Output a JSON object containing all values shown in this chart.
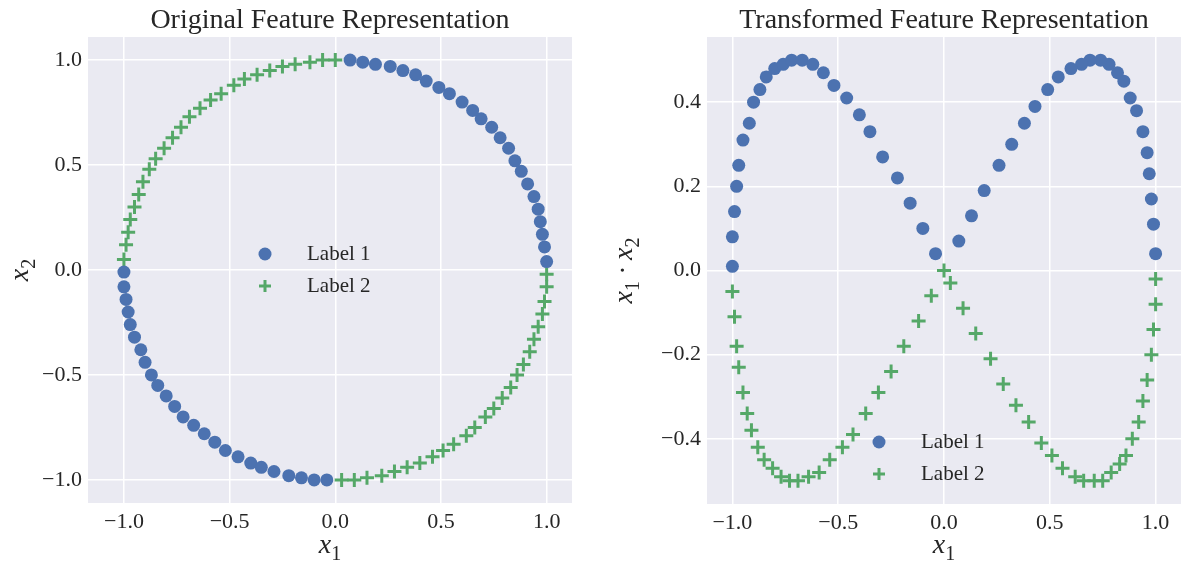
{
  "chart_data": [
    {
      "type": "scatter",
      "title": "Original Feature Representation",
      "xlabel": "x$_{1}$",
      "ylabel": "x$_{2}$",
      "xlim": [
        -1.17,
        1.12
      ],
      "ylim": [
        -1.11,
        1.11
      ],
      "xticks": [
        {
          "value": -1,
          "label": "−1.0"
        },
        {
          "value": -0.5,
          "label": "−0.5"
        },
        {
          "value": 0,
          "label": "0.0"
        },
        {
          "value": 0.5,
          "label": "0.5"
        },
        {
          "value": 1,
          "label": "1.0"
        }
      ],
      "yticks": [
        {
          "value": -1,
          "label": "−1.0"
        },
        {
          "value": -0.5,
          "label": "−0.5"
        },
        {
          "value": 0,
          "label": "0.0"
        },
        {
          "value": 0.5,
          "label": "0.5"
        },
        {
          "value": 1,
          "label": "1.0"
        }
      ],
      "grid": true,
      "legend": "center",
      "series": [
        {
          "name": "Label 1",
          "color": "#4c72b0",
          "marker": "circle",
          "x": [
            1.0,
            0.99,
            0.98,
            0.97,
            0.96,
            0.94,
            0.91,
            0.88,
            0.85,
            0.82,
            0.78,
            0.74,
            0.69,
            0.65,
            0.6,
            0.54,
            0.49,
            0.43,
            0.38,
            0.32,
            0.26,
            0.19,
            0.13,
            0.07,
            -1.0,
            -1.0,
            -0.99,
            -0.98,
            -0.97,
            -0.95,
            -0.92,
            -0.9,
            -0.87,
            -0.84,
            -0.8,
            -0.76,
            -0.72,
            -0.67,
            -0.62,
            -0.57,
            -0.52,
            -0.46,
            -0.4,
            -0.35,
            -0.29,
            -0.22,
            -0.16,
            -0.1,
            -0.04
          ],
          "values": [
            0.04,
            0.11,
            0.17,
            0.23,
            0.29,
            0.35,
            0.41,
            0.47,
            0.52,
            0.58,
            0.63,
            0.68,
            0.72,
            0.76,
            0.8,
            0.84,
            0.87,
            0.9,
            0.93,
            0.95,
            0.97,
            0.98,
            0.99,
            1.0,
            -0.01,
            -0.08,
            -0.14,
            -0.2,
            -0.26,
            -0.32,
            -0.38,
            -0.44,
            -0.5,
            -0.55,
            -0.6,
            -0.65,
            -0.7,
            -0.74,
            -0.78,
            -0.82,
            -0.86,
            -0.89,
            -0.92,
            -0.94,
            -0.96,
            -0.98,
            -0.99,
            -1.0,
            -1.0
          ]
        },
        {
          "name": "Label 2",
          "color": "#55a868",
          "marker": "cross",
          "x": [
            0.0,
            -0.06,
            -0.12,
            -0.19,
            -0.25,
            -0.31,
            -0.37,
            -0.43,
            -0.48,
            -0.54,
            -0.59,
            -0.64,
            -0.69,
            -0.73,
            -0.77,
            -0.81,
            -0.85,
            -0.88,
            -0.91,
            -0.93,
            -0.95,
            -0.97,
            -0.98,
            -0.99,
            -1.0,
            0.03,
            0.09,
            0.15,
            0.22,
            0.28,
            0.34,
            0.4,
            0.46,
            0.51,
            0.56,
            0.62,
            0.66,
            0.71,
            0.75,
            0.79,
            0.83,
            0.86,
            0.89,
            0.92,
            0.94,
            0.96,
            0.98,
            0.99,
            1.0,
            1.0
          ],
          "values": [
            1.0,
            1.0,
            0.99,
            0.98,
            0.97,
            0.95,
            0.93,
            0.91,
            0.88,
            0.84,
            0.81,
            0.77,
            0.73,
            0.68,
            0.63,
            0.58,
            0.53,
            0.48,
            0.42,
            0.36,
            0.3,
            0.24,
            0.18,
            0.12,
            0.05,
            -1.0,
            -1.0,
            -0.99,
            -0.98,
            -0.96,
            -0.94,
            -0.92,
            -0.89,
            -0.86,
            -0.83,
            -0.79,
            -0.75,
            -0.7,
            -0.66,
            -0.61,
            -0.56,
            -0.5,
            -0.45,
            -0.39,
            -0.33,
            -0.27,
            -0.21,
            -0.15,
            -0.08,
            -0.02
          ]
        }
      ]
    },
    {
      "type": "scatter",
      "title": "Transformed Feature Representation",
      "xlabel": "x$_{1}$",
      "ylabel": "x$_{1}$ · x$_{2}$",
      "xlim": [
        -1.12,
        1.12
      ],
      "ylim": [
        -0.555,
        0.555
      ],
      "xticks": [
        {
          "value": -1,
          "label": "−1.0"
        },
        {
          "value": -0.5,
          "label": "−0.5"
        },
        {
          "value": 0,
          "label": "0.0"
        },
        {
          "value": 0.5,
          "label": "0.5"
        },
        {
          "value": 1,
          "label": "1.0"
        }
      ],
      "yticks": [
        {
          "value": -0.4,
          "label": "−0.4"
        },
        {
          "value": -0.2,
          "label": "−0.2"
        },
        {
          "value": 0,
          "label": "0.0"
        },
        {
          "value": 0.2,
          "label": "0.2"
        },
        {
          "value": 0.4,
          "label": "0.4"
        }
      ],
      "grid": true,
      "legend": "bottom",
      "series": [
        {
          "name": "Label 1",
          "color": "#4c72b0",
          "marker": "circle",
          "x": [
            1.0,
            0.99,
            0.98,
            0.97,
            0.96,
            0.94,
            0.91,
            0.88,
            0.85,
            0.82,
            0.78,
            0.74,
            0.69,
            0.65,
            0.6,
            0.54,
            0.49,
            0.43,
            0.38,
            0.32,
            0.26,
            0.19,
            0.13,
            0.07,
            -1.0,
            -1.0,
            -0.99,
            -0.98,
            -0.97,
            -0.95,
            -0.92,
            -0.9,
            -0.87,
            -0.84,
            -0.8,
            -0.76,
            -0.72,
            -0.67,
            -0.62,
            -0.57,
            -0.52,
            -0.46,
            -0.4,
            -0.35,
            -0.29,
            -0.22,
            -0.16,
            -0.1,
            -0.04
          ],
          "values": [
            0.04,
            0.11,
            0.17,
            0.23,
            0.28,
            0.33,
            0.38,
            0.41,
            0.45,
            0.47,
            0.49,
            0.5,
            0.5,
            0.49,
            0.48,
            0.46,
            0.43,
            0.39,
            0.35,
            0.3,
            0.25,
            0.19,
            0.13,
            0.07,
            0.01,
            0.08,
            0.14,
            0.2,
            0.25,
            0.31,
            0.35,
            0.4,
            0.43,
            0.46,
            0.48,
            0.49,
            0.5,
            0.5,
            0.49,
            0.47,
            0.44,
            0.41,
            0.37,
            0.33,
            0.27,
            0.22,
            0.16,
            0.1,
            0.04
          ]
        },
        {
          "name": "Label 2",
          "color": "#55a868",
          "marker": "cross",
          "x": [
            0.0,
            -0.06,
            -0.12,
            -0.19,
            -0.25,
            -0.31,
            -0.37,
            -0.43,
            -0.48,
            -0.54,
            -0.59,
            -0.64,
            -0.69,
            -0.73,
            -0.77,
            -0.81,
            -0.85,
            -0.88,
            -0.91,
            -0.93,
            -0.95,
            -0.97,
            -0.98,
            -0.99,
            -1.0,
            0.03,
            0.09,
            0.15,
            0.22,
            0.28,
            0.34,
            0.4,
            0.46,
            0.51,
            0.56,
            0.62,
            0.66,
            0.71,
            0.75,
            0.79,
            0.83,
            0.86,
            0.89,
            0.92,
            0.94,
            0.96,
            0.98,
            0.99,
            1.0,
            1.0
          ],
          "values": [
            0.0,
            -0.06,
            -0.12,
            -0.18,
            -0.24,
            -0.29,
            -0.34,
            -0.39,
            -0.42,
            -0.45,
            -0.48,
            -0.49,
            -0.5,
            -0.5,
            -0.49,
            -0.47,
            -0.45,
            -0.42,
            -0.38,
            -0.34,
            -0.29,
            -0.23,
            -0.18,
            -0.11,
            -0.05,
            -0.03,
            -0.09,
            -0.15,
            -0.21,
            -0.27,
            -0.32,
            -0.36,
            -0.41,
            -0.44,
            -0.47,
            -0.49,
            -0.5,
            -0.5,
            -0.5,
            -0.48,
            -0.46,
            -0.44,
            -0.4,
            -0.36,
            -0.31,
            -0.26,
            -0.2,
            -0.14,
            -0.08,
            -0.02
          ]
        }
      ]
    }
  ]
}
